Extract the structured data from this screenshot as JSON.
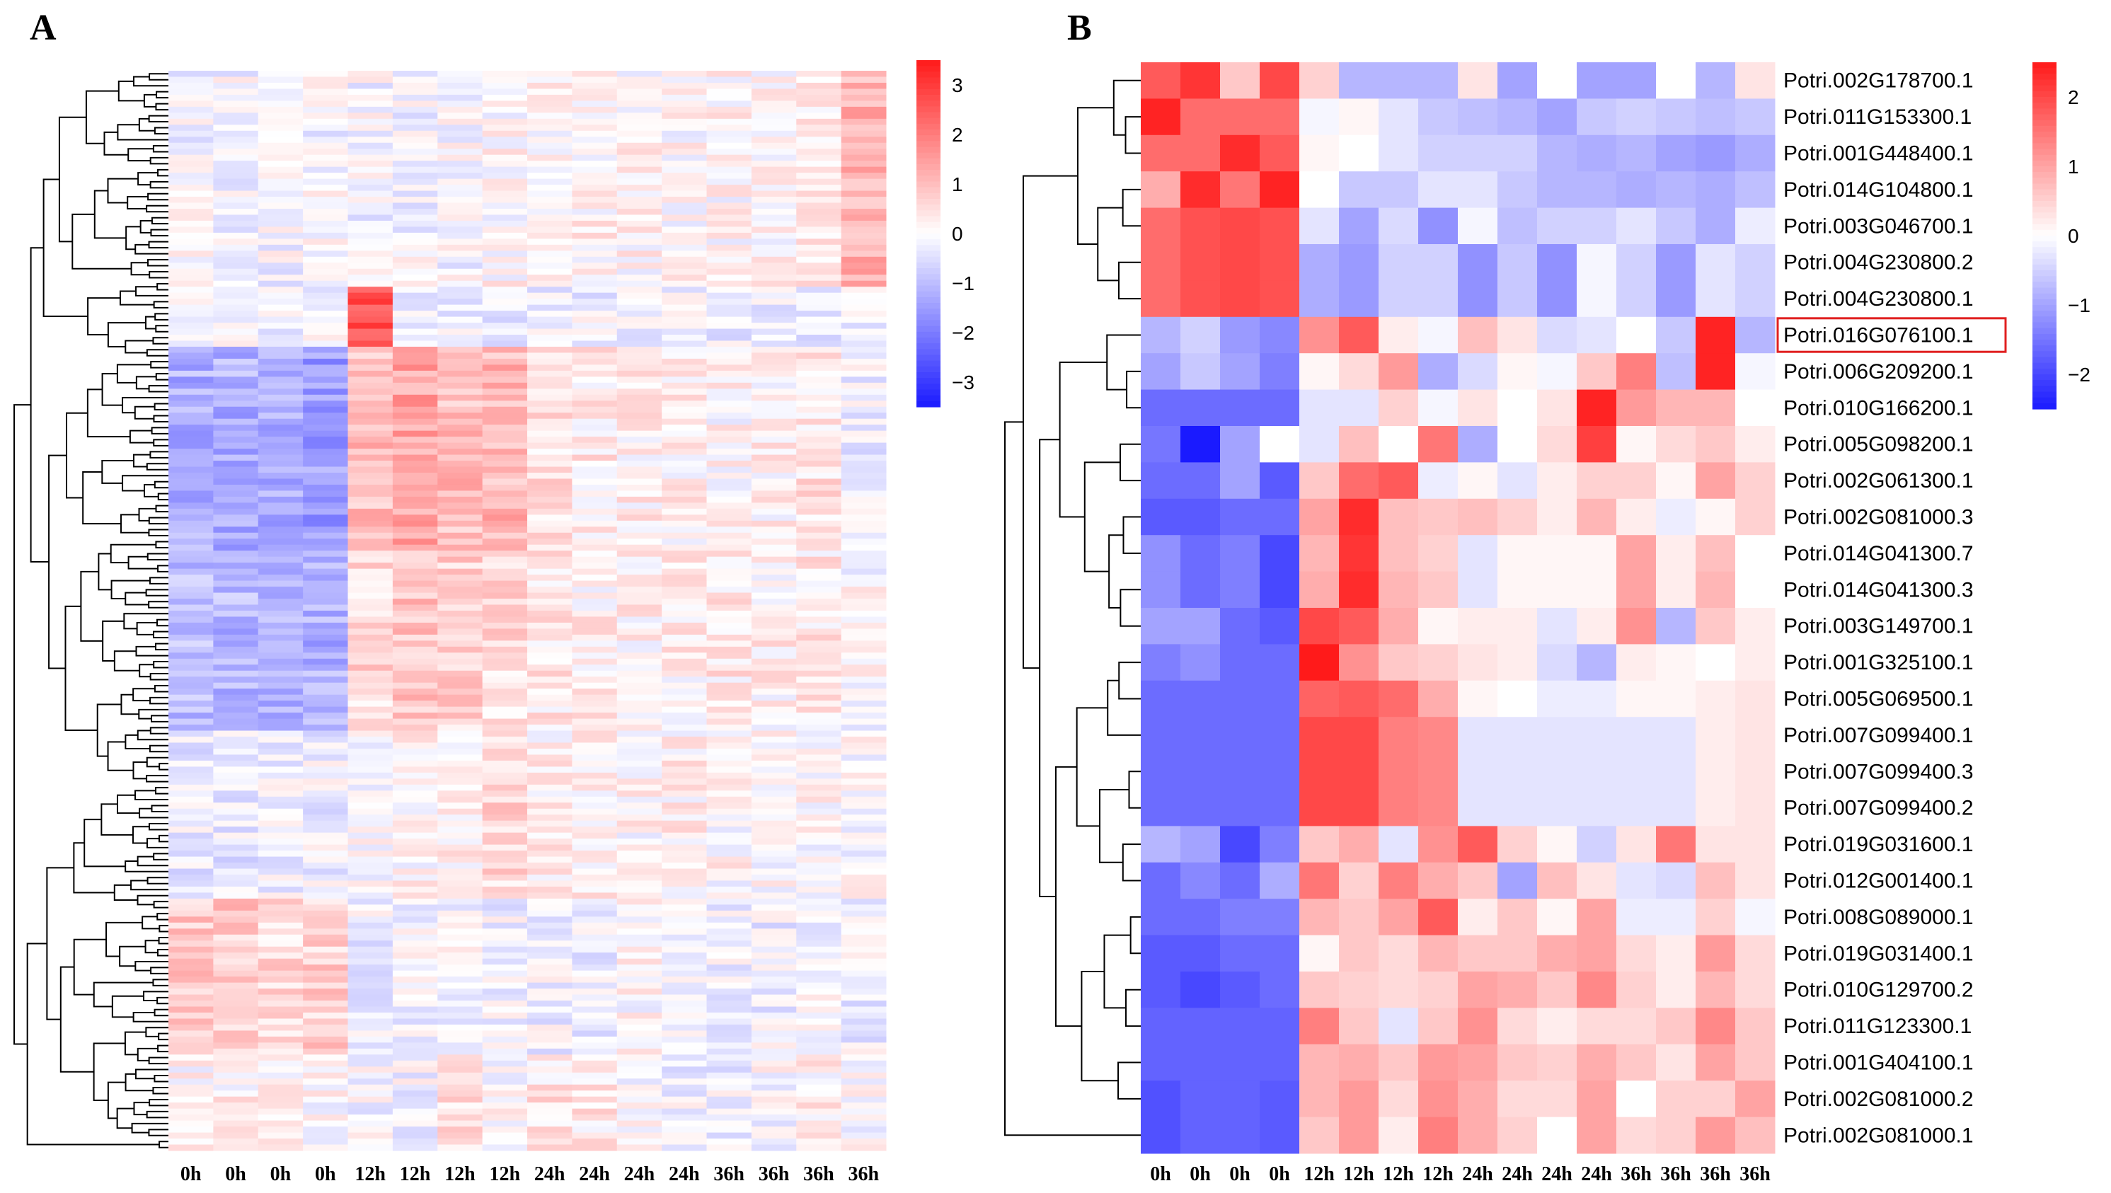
{
  "figure": {
    "panels": [
      {
        "letter": "A"
      },
      {
        "letter": "B"
      }
    ]
  },
  "chart_data": [
    {
      "type": "heatmap",
      "panel": "A",
      "columns": [
        "0h",
        "0h",
        "0h",
        "0h",
        "12h",
        "12h",
        "12h",
        "12h",
        "24h",
        "24h",
        "24h",
        "24h",
        "36h",
        "36h",
        "36h",
        "36h"
      ],
      "n_rows": 180,
      "colorbar": {
        "ticks": [
          3,
          2,
          1,
          0,
          -1,
          -2,
          -3
        ],
        "range": [
          -3.5,
          3.5
        ]
      },
      "colors": {
        "low": "#1a1aff",
        "mid": "#ffffff",
        "high": "#ff1a1a"
      },
      "clusters": [
        {
          "rows": 36,
          "means": [
            -0.1,
            -0.1,
            -0.1,
            -0.1,
            -0.1,
            -0.1,
            -0.1,
            0.1,
            0.1,
            0.2,
            0.1,
            0.1,
            0.1,
            0.1,
            0.2,
            1.2
          ]
        },
        {
          "rows": 10,
          "means": [
            -0.2,
            -0.2,
            -0.2,
            -0.2,
            2.6,
            -0.2,
            -0.2,
            -0.2,
            -0.2,
            -0.2,
            -0.2,
            -0.2,
            -0.2,
            -0.2,
            -0.2,
            -0.2
          ]
        },
        {
          "rows": 34,
          "means": [
            -1.2,
            -1.2,
            -1.3,
            -1.5,
            1.0,
            1.4,
            1.0,
            1.1,
            0.5,
            0.3,
            0.2,
            0.2,
            0.1,
            0.2,
            0.4,
            -0.2
          ]
        },
        {
          "rows": 30,
          "means": [
            -1.0,
            -1.1,
            -1.1,
            -1.2,
            0.6,
            0.9,
            0.7,
            0.5,
            0.3,
            0.2,
            0.2,
            0.2,
            0.3,
            0.2,
            0.3,
            0.0
          ]
        },
        {
          "rows": 28,
          "means": [
            -0.3,
            -0.3,
            -0.2,
            -0.2,
            0.1,
            0.1,
            0.2,
            0.6,
            0.2,
            0.2,
            0.1,
            0.2,
            0.1,
            0.0,
            0.1,
            0.0
          ]
        },
        {
          "rows": 26,
          "means": [
            0.8,
            0.8,
            0.6,
            0.7,
            -0.2,
            -0.1,
            -0.1,
            -0.2,
            -0.2,
            -0.2,
            0.1,
            -0.2,
            -0.1,
            -0.2,
            -0.1,
            -0.2
          ]
        },
        {
          "rows": 16,
          "means": [
            0.1,
            0.2,
            0.1,
            0.1,
            -0.1,
            -0.1,
            0.6,
            0.1,
            0.4,
            0.3,
            0.0,
            -0.2,
            -0.2,
            0.0,
            0.2,
            0.0
          ]
        }
      ]
    },
    {
      "type": "heatmap",
      "panel": "B",
      "columns": [
        "0h",
        "0h",
        "0h",
        "0h",
        "12h",
        "12h",
        "12h",
        "12h",
        "24h",
        "24h",
        "24h",
        "24h",
        "36h",
        "36h",
        "36h",
        "36h"
      ],
      "rows": [
        "Potri.002G178700.1",
        "Potri.011G153300.1",
        "Potri.001G448400.1",
        "Potri.014G104800.1",
        "Potri.003G046700.1",
        "Potri.004G230800.2",
        "Potri.004G230800.1",
        "Potri.016G076100.1",
        "Potri.006G209200.1",
        "Potri.010G166200.1",
        "Potri.005G098200.1",
        "Potri.002G061300.1",
        "Potri.002G081000.3",
        "Potri.014G041300.7",
        "Potri.014G041300.3",
        "Potri.003G149700.1",
        "Potri.001G325100.1",
        "Potri.005G069500.1",
        "Potri.007G099400.1",
        "Potri.007G099400.3",
        "Potri.007G099400.2",
        "Potri.019G031600.1",
        "Potri.012G001400.1",
        "Potri.008G089000.1",
        "Potri.019G031400.1",
        "Potri.010G129700.2",
        "Potri.011G123300.1",
        "Potri.001G404100.1",
        "Potri.002G081000.2",
        "Potri.002G081000.1"
      ],
      "highlighted_row": "Potri.016G076100.1",
      "values": [
        [
          1.8,
          2.2,
          0.6,
          2.0,
          0.5,
          -0.8,
          -0.8,
          -0.8,
          0.3,
          -1.0,
          0.0,
          -1.0,
          -1.0,
          0.0,
          -0.8,
          0.3
        ],
        [
          2.4,
          1.6,
          1.6,
          1.6,
          -0.1,
          0.1,
          -0.3,
          -0.6,
          -0.7,
          -0.8,
          -1.0,
          -0.6,
          -0.5,
          -0.6,
          -0.7,
          -0.6
        ],
        [
          1.6,
          1.6,
          2.3,
          1.8,
          0.1,
          0.0,
          -0.3,
          -0.5,
          -0.5,
          -0.5,
          -0.8,
          -0.9,
          -0.8,
          -1.0,
          -1.1,
          -0.9
        ],
        [
          0.9,
          2.3,
          1.5,
          2.4,
          0.0,
          -0.6,
          -0.6,
          -0.3,
          -0.3,
          -0.6,
          -0.8,
          -0.8,
          -0.9,
          -0.8,
          -0.9,
          -0.7
        ],
        [
          1.6,
          1.9,
          2.0,
          1.9,
          -0.3,
          -1.0,
          -0.4,
          -1.2,
          -0.1,
          -0.7,
          -0.5,
          -0.5,
          -0.3,
          -0.6,
          -0.9,
          -0.2
        ],
        [
          1.6,
          1.9,
          2.0,
          1.9,
          -0.9,
          -1.1,
          -0.5,
          -0.5,
          -1.2,
          -0.6,
          -1.2,
          -0.1,
          -0.5,
          -1.1,
          -0.3,
          -0.5
        ],
        [
          1.6,
          1.9,
          2.0,
          1.9,
          -0.9,
          -1.1,
          -0.5,
          -0.5,
          -1.2,
          -0.6,
          -1.2,
          -0.1,
          -0.5,
          -1.1,
          -0.3,
          -0.5
        ],
        [
          -0.8,
          -0.5,
          -1.1,
          -1.3,
          1.2,
          1.8,
          0.2,
          -0.1,
          0.7,
          0.3,
          -0.4,
          -0.3,
          0.0,
          -0.6,
          2.4,
          -0.8
        ],
        [
          -1.0,
          -0.6,
          -1.0,
          -1.4,
          0.1,
          0.4,
          1.1,
          -0.9,
          -0.4,
          0.1,
          -0.1,
          0.6,
          1.4,
          -0.7,
          2.4,
          -0.1
        ],
        [
          -1.6,
          -1.6,
          -1.6,
          -1.6,
          -0.3,
          -0.3,
          0.5,
          -0.1,
          0.3,
          0.0,
          0.3,
          2.4,
          1.1,
          0.8,
          0.8,
          0.0
        ],
        [
          -1.5,
          -2.6,
          -1.0,
          0.0,
          -0.3,
          0.7,
          0.0,
          1.5,
          -0.9,
          0.0,
          0.4,
          2.1,
          0.1,
          0.4,
          0.6,
          0.2
        ],
        [
          -1.6,
          -1.6,
          -1.0,
          -1.8,
          0.6,
          1.6,
          1.8,
          -0.2,
          0.1,
          -0.3,
          0.2,
          0.5,
          0.5,
          0.1,
          1.0,
          0.5
        ],
        [
          -1.8,
          -1.8,
          -1.6,
          -1.6,
          1.0,
          2.3,
          0.7,
          0.6,
          0.7,
          0.5,
          0.2,
          0.8,
          0.2,
          -0.2,
          0.1,
          0.5
        ],
        [
          -1.2,
          -1.6,
          -1.4,
          -2.0,
          0.8,
          2.2,
          0.7,
          0.5,
          -0.3,
          0.1,
          0.1,
          0.1,
          1.0,
          0.2,
          0.7,
          0.0
        ],
        [
          -1.2,
          -1.6,
          -1.4,
          -2.0,
          0.9,
          2.3,
          0.8,
          0.6,
          -0.3,
          0.1,
          0.1,
          0.1,
          1.0,
          0.2,
          0.8,
          0.0
        ],
        [
          -1.0,
          -1.0,
          -1.6,
          -1.8,
          2.0,
          1.8,
          0.9,
          0.1,
          0.2,
          0.2,
          -0.3,
          0.2,
          1.2,
          -0.8,
          0.6,
          0.2
        ],
        [
          -1.4,
          -1.2,
          -1.6,
          -1.6,
          2.5,
          1.2,
          0.6,
          0.5,
          0.3,
          0.2,
          -0.4,
          -0.8,
          0.2,
          0.1,
          0.0,
          0.2
        ],
        [
          -1.6,
          -1.6,
          -1.6,
          -1.6,
          1.7,
          1.8,
          1.6,
          0.9,
          0.1,
          0.0,
          -0.2,
          -0.2,
          0.1,
          0.1,
          0.2,
          0.3
        ],
        [
          -1.6,
          -1.6,
          -1.6,
          -1.6,
          2.0,
          2.0,
          1.4,
          1.3,
          -0.3,
          -0.3,
          -0.3,
          -0.3,
          -0.3,
          -0.3,
          0.2,
          0.3
        ],
        [
          -1.6,
          -1.6,
          -1.6,
          -1.6,
          2.0,
          2.0,
          1.4,
          1.3,
          -0.3,
          -0.3,
          -0.3,
          -0.3,
          -0.3,
          -0.3,
          0.2,
          0.3
        ],
        [
          -1.6,
          -1.6,
          -1.6,
          -1.6,
          2.0,
          2.0,
          1.4,
          1.3,
          -0.3,
          -0.3,
          -0.3,
          -0.3,
          -0.3,
          -0.3,
          0.2,
          0.3
        ],
        [
          -0.8,
          -1.0,
          -2.0,
          -1.4,
          0.6,
          0.9,
          -0.3,
          1.2,
          1.8,
          0.5,
          0.1,
          -0.5,
          0.3,
          1.5,
          0.3,
          0.3
        ],
        [
          -1.6,
          -1.3,
          -1.6,
          -0.9,
          1.5,
          0.5,
          1.4,
          0.9,
          0.6,
          -1.0,
          0.7,
          0.3,
          -0.3,
          -0.4,
          0.7,
          0.3
        ],
        [
          -1.6,
          -1.6,
          -1.4,
          -1.4,
          0.8,
          0.6,
          1.0,
          1.8,
          0.2,
          0.6,
          0.1,
          1.0,
          -0.2,
          -0.2,
          0.5,
          -0.1
        ],
        [
          -1.8,
          -1.8,
          -1.6,
          -1.6,
          0.1,
          0.6,
          0.4,
          0.8,
          0.6,
          0.6,
          0.9,
          1.0,
          0.4,
          0.2,
          1.1,
          0.4
        ],
        [
          -1.8,
          -2.0,
          -1.8,
          -1.6,
          0.6,
          0.5,
          0.4,
          0.5,
          1.0,
          0.9,
          0.6,
          1.3,
          0.5,
          0.2,
          0.8,
          0.4
        ],
        [
          -1.7,
          -1.7,
          -1.7,
          -1.7,
          1.4,
          0.6,
          -0.3,
          0.6,
          1.2,
          0.4,
          0.2,
          0.4,
          0.4,
          0.6,
          1.3,
          0.6
        ],
        [
          -1.7,
          -1.7,
          -1.7,
          -1.7,
          0.8,
          0.9,
          0.6,
          1.1,
          1.0,
          0.6,
          0.5,
          0.9,
          0.6,
          0.3,
          1.0,
          0.6
        ],
        [
          -1.9,
          -1.7,
          -1.7,
          -1.8,
          0.8,
          1.1,
          0.4,
          1.2,
          0.9,
          0.4,
          0.4,
          1.0,
          0.0,
          0.5,
          0.5,
          1.0
        ],
        [
          -1.9,
          -1.7,
          -1.7,
          -1.8,
          0.6,
          1.1,
          0.2,
          1.4,
          0.9,
          0.5,
          0.0,
          1.0,
          0.4,
          0.5,
          1.1,
          0.7
        ]
      ],
      "colorbar": {
        "ticks": [
          2,
          1,
          0,
          -1,
          -2
        ],
        "range": [
          -2.5,
          2.5
        ]
      },
      "colors": {
        "low": "#1a1aff",
        "mid": "#ffffff",
        "high": "#ff1a1a",
        "highlight_box": "#e02020"
      }
    }
  ]
}
